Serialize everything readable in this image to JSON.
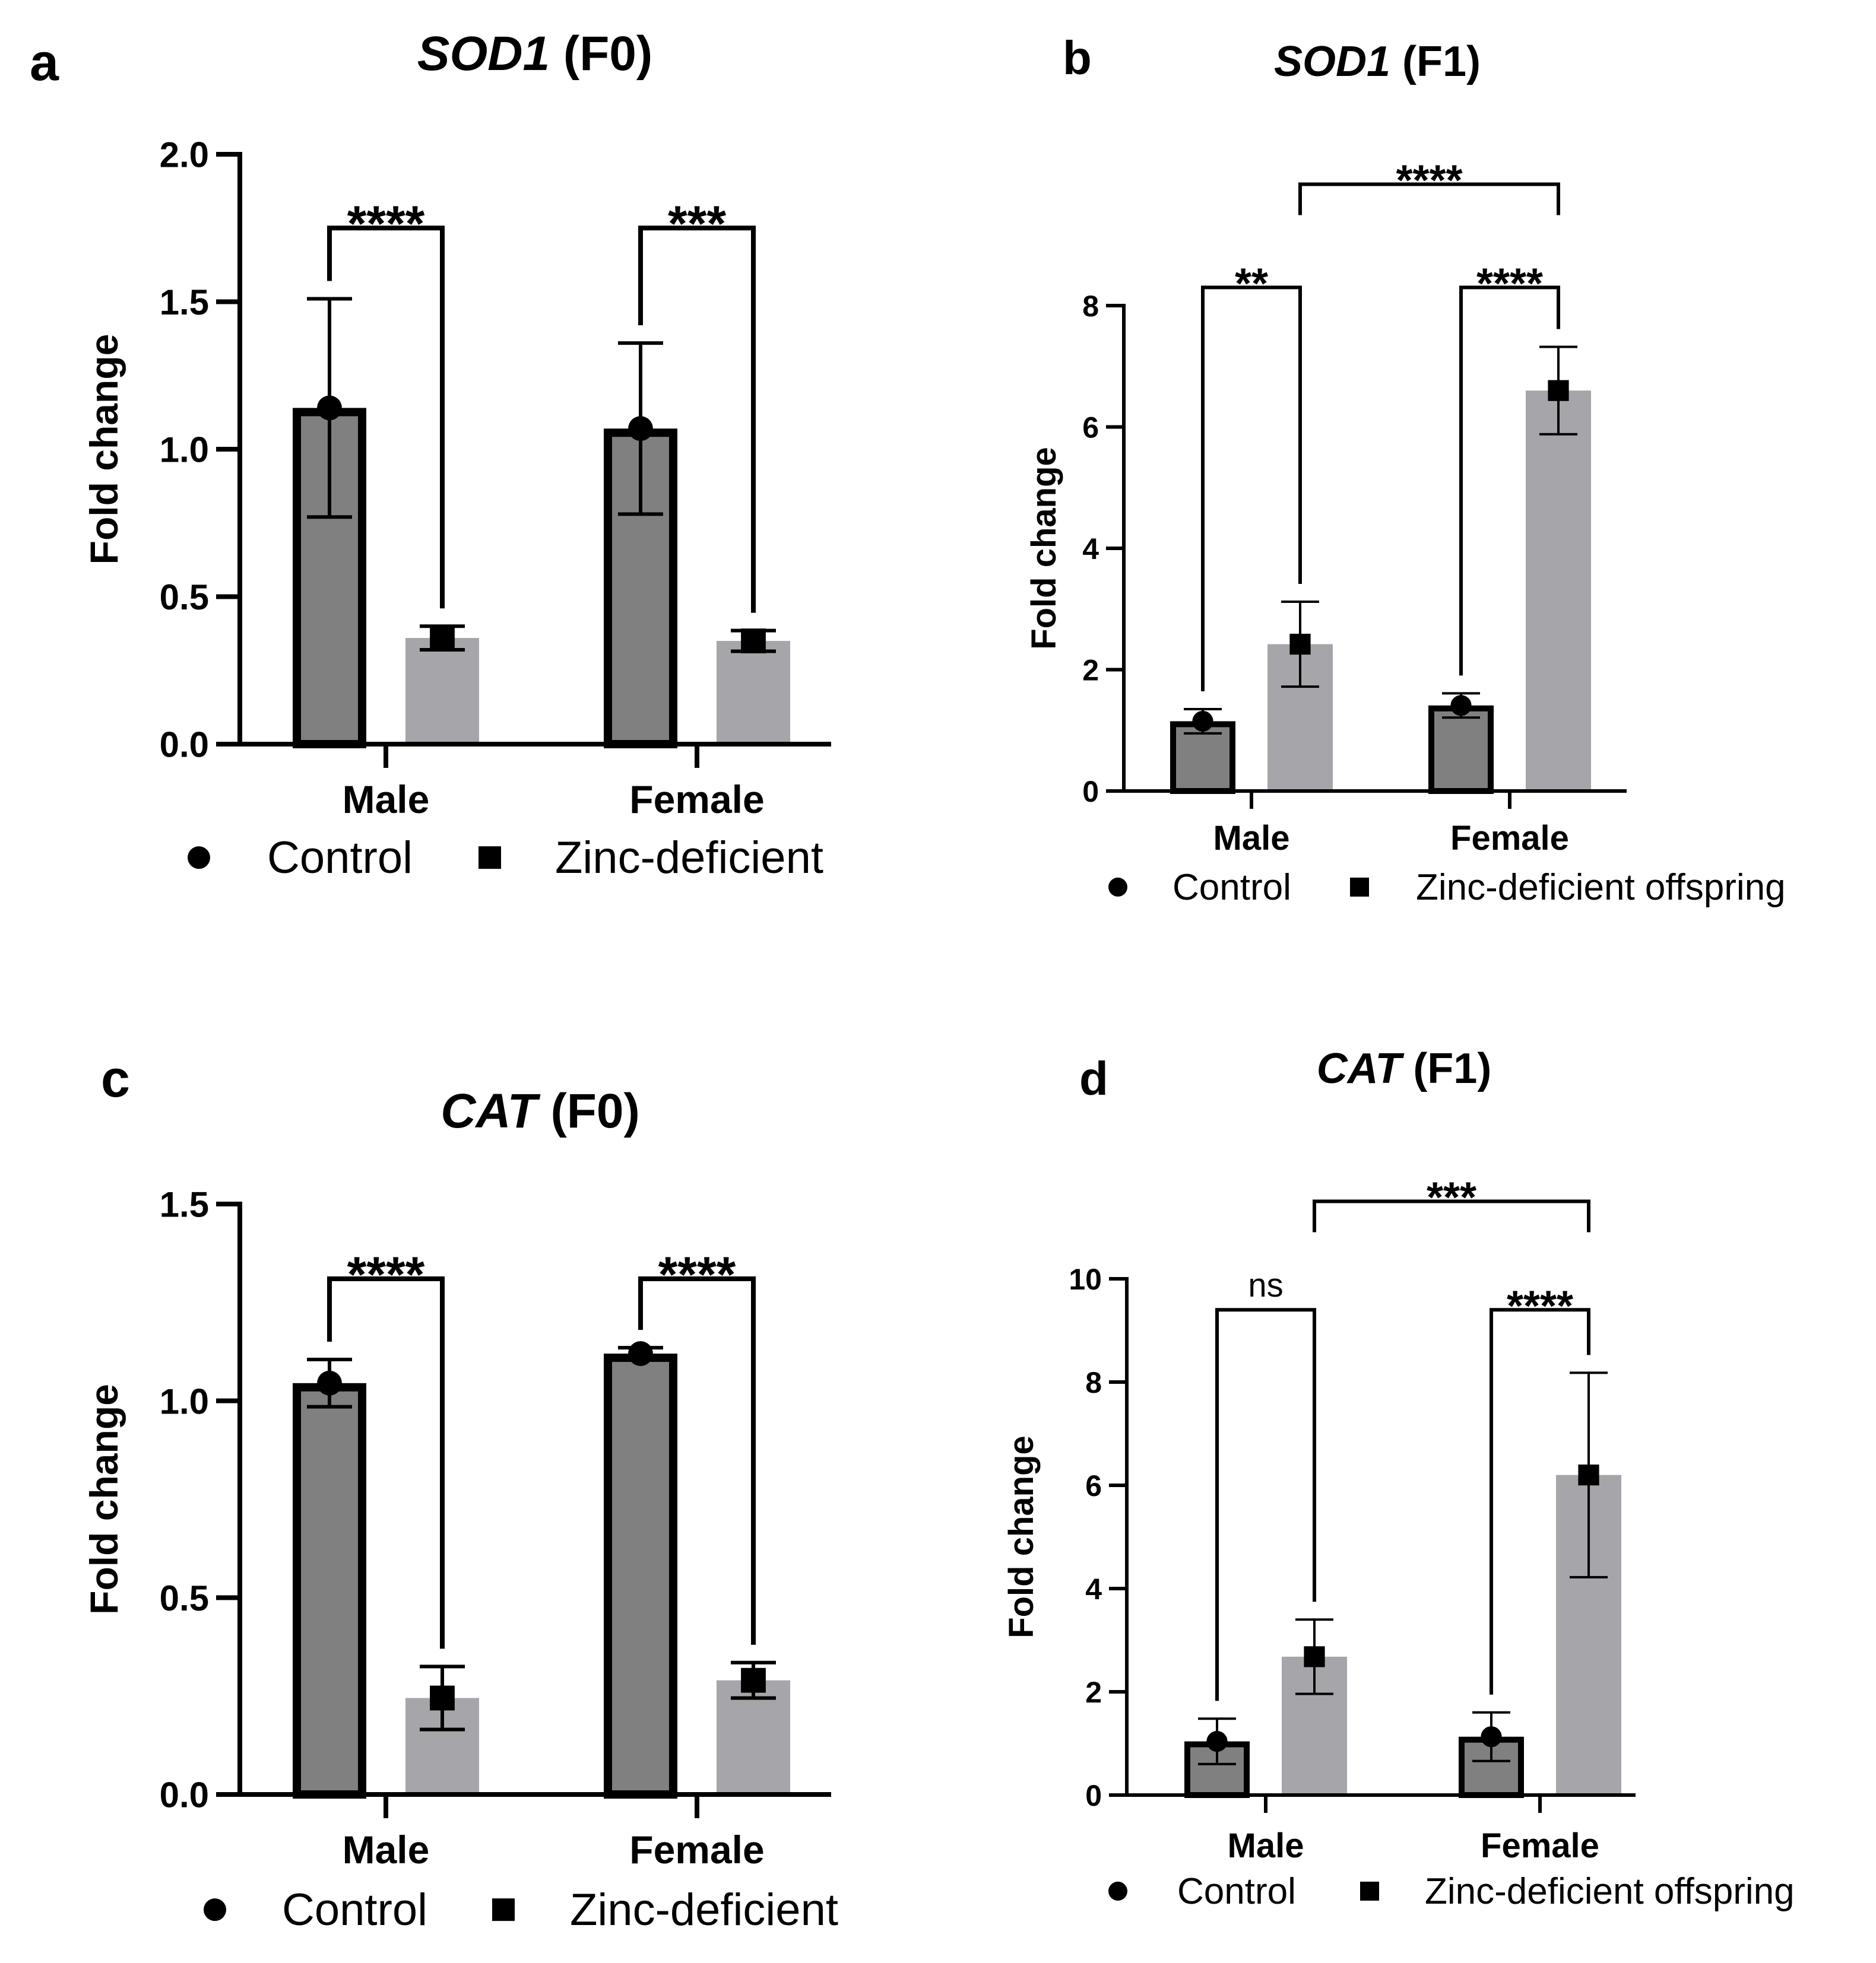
{
  "chart_data": [
    {
      "id": "a",
      "type": "bar",
      "panel_label": "a",
      "title_gene": "SOD1",
      "title_suffix": " (F0)",
      "ylabel": "Fold change",
      "ylim": [
        0,
        2.0
      ],
      "ticks": [
        0,
        0.5,
        1.0,
        1.5,
        2.0
      ],
      "tick_labels": [
        "0.0",
        "0.5",
        "1.0",
        "1.5",
        "2.0"
      ],
      "categories": [
        "Male",
        "Female"
      ],
      "series": [
        {
          "name": "Control",
          "marker": "circle",
          "color": "#808080",
          "outlined": true,
          "values": [
            1.14,
            1.07
          ],
          "errors": [
            0.37,
            0.29
          ]
        },
        {
          "name": "Zinc-deficient",
          "marker": "square",
          "color": "#a6a5aa",
          "outlined": false,
          "values": [
            0.36,
            0.35
          ],
          "errors": [
            0.04,
            0.035
          ]
        }
      ],
      "legend": [
        "Control",
        "Zinc-deficient"
      ],
      "legend_position": "bottom",
      "annotations": [
        {
          "text": "****",
          "type": "within",
          "category": 0,
          "level": 1.75
        },
        {
          "text": "***",
          "type": "within",
          "category": 1,
          "level": 1.75
        }
      ]
    },
    {
      "id": "b",
      "type": "bar",
      "panel_label": "b",
      "title_gene": "SOD1",
      "title_suffix": " (F1)",
      "ylabel": "Fold change",
      "ylim": [
        0,
        8
      ],
      "ticks": [
        0,
        2,
        4,
        6,
        8
      ],
      "tick_labels": [
        "0",
        "2",
        "4",
        "6",
        "8"
      ],
      "categories": [
        "Male",
        "Female"
      ],
      "series": [
        {
          "name": "Control",
          "marker": "circle",
          "color": "#808080",
          "outlined": true,
          "values": [
            1.15,
            1.41
          ],
          "errors": [
            0.2,
            0.2
          ]
        },
        {
          "name": "Zinc-deficient offspring",
          "marker": "square",
          "color": "#a6a5aa",
          "outlined": false,
          "values": [
            2.42,
            6.6
          ],
          "errors": [
            0.7,
            0.72
          ]
        }
      ],
      "legend": [
        "Control",
        "Zinc-deficient offspring"
      ],
      "legend_position": "bottom",
      "annotations": [
        {
          "text": "**",
          "type": "within",
          "category": 0,
          "level": 8.3
        },
        {
          "text": "****",
          "type": "within",
          "category": 1,
          "level": 8.3
        },
        {
          "text": "****",
          "type": "across",
          "level": 10.0
        }
      ]
    },
    {
      "id": "c",
      "type": "bar",
      "panel_label": "c",
      "title_gene": "CAT",
      "title_suffix": " (F0)",
      "ylabel": "Fold change",
      "ylim": [
        0,
        1.5
      ],
      "ticks": [
        0,
        0.5,
        1.0,
        1.5
      ],
      "tick_labels": [
        "0.0",
        "0.5",
        "1.0",
        "1.5"
      ],
      "categories": [
        "Male",
        "Female"
      ],
      "series": [
        {
          "name": "Control",
          "marker": "circle",
          "color": "#808080",
          "outlined": true,
          "values": [
            1.045,
            1.12
          ],
          "errors": [
            0.06,
            0.015
          ]
        },
        {
          "name": "Zinc-deficient",
          "marker": "square",
          "color": "#a6a5aa",
          "outlined": false,
          "values": [
            0.245,
            0.29
          ],
          "errors": [
            0.08,
            0.045
          ]
        }
      ],
      "legend": [
        "Control",
        "Zinc-deficient"
      ],
      "legend_position": "bottom",
      "annotations": [
        {
          "text": "****",
          "type": "within",
          "category": 0,
          "level": 1.31
        },
        {
          "text": "****",
          "type": "within",
          "category": 1,
          "level": 1.31
        }
      ]
    },
    {
      "id": "d",
      "type": "bar",
      "panel_label": "d",
      "title_gene": "CAT",
      "title_suffix": " (F1)",
      "ylabel": "Fold change",
      "ylim": [
        0,
        10
      ],
      "ticks": [
        0,
        2,
        4,
        6,
        8,
        10
      ],
      "tick_labels": [
        "0",
        "2",
        "4",
        "6",
        "8",
        "10"
      ],
      "categories": [
        "Male",
        "Female"
      ],
      "series": [
        {
          "name": "Control",
          "marker": "circle",
          "color": "#808080",
          "outlined": true,
          "values": [
            1.04,
            1.13
          ],
          "errors": [
            0.44,
            0.47
          ]
        },
        {
          "name": "Zinc-deficient offspring",
          "marker": "square",
          "color": "#a6a5aa",
          "outlined": false,
          "values": [
            2.68,
            6.2
          ],
          "errors": [
            0.72,
            1.98
          ]
        }
      ],
      "legend": [
        "Control",
        "Zinc-deficient offspring"
      ],
      "legend_position": "bottom",
      "annotations": [
        {
          "text": "ns",
          "type": "within",
          "category": 0,
          "level": 9.4,
          "normal": true
        },
        {
          "text": "****",
          "type": "within",
          "category": 1,
          "level": 9.4
        },
        {
          "text": "***",
          "type": "across",
          "level": 11.5
        }
      ]
    }
  ]
}
